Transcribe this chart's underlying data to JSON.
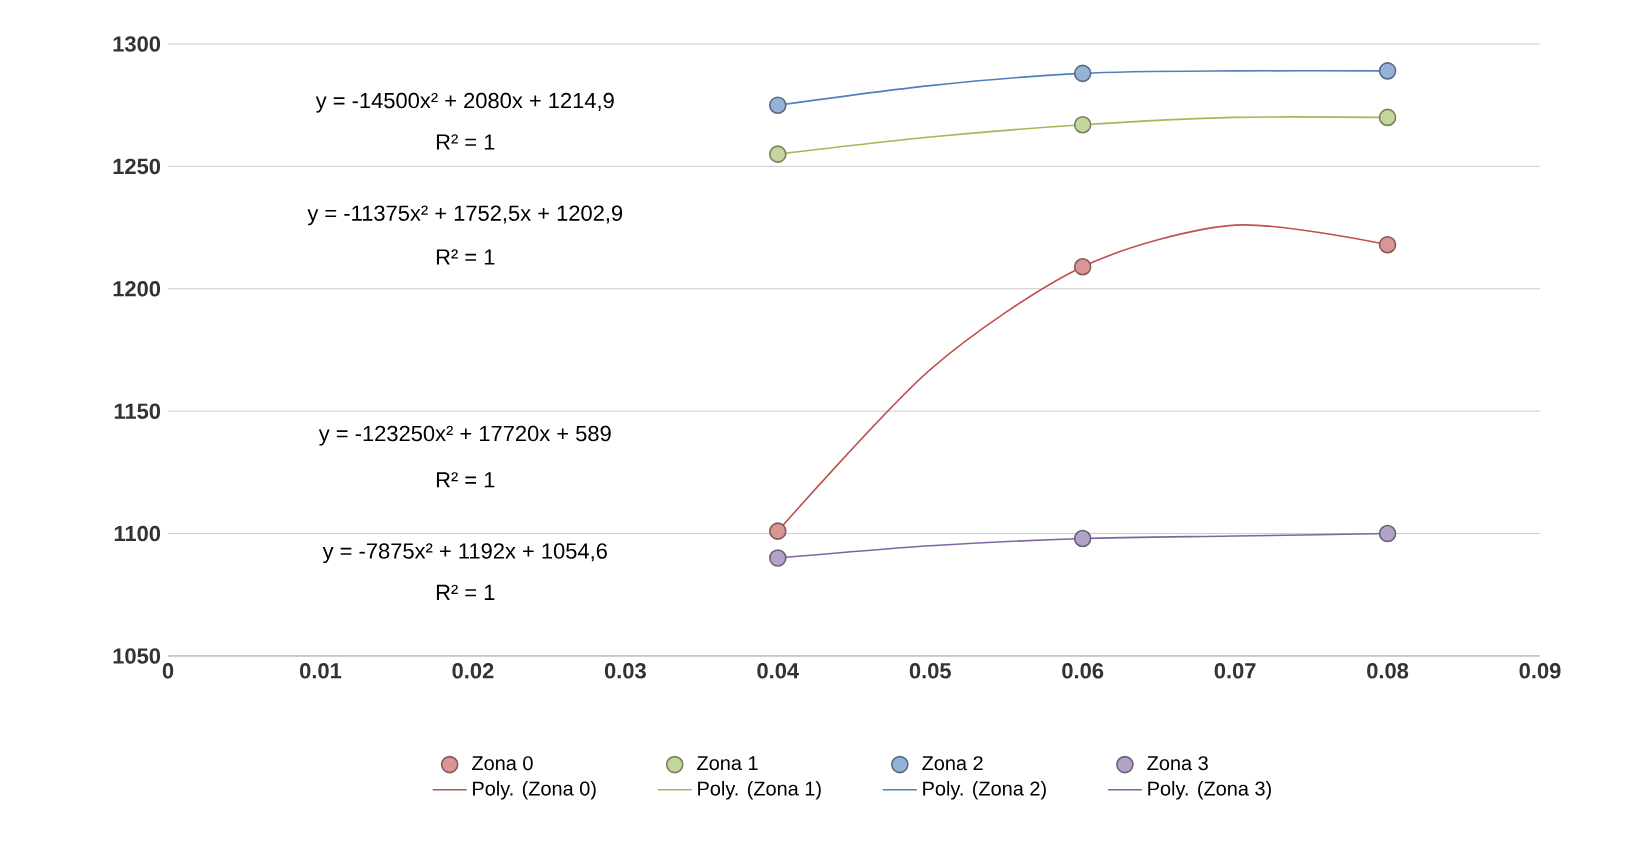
{
  "chart_data": {
    "type": "scatter",
    "series": [
      {
        "name": "Zona 0",
        "color": "#d99694",
        "marker": "circle",
        "x": [
          0.04,
          0.06,
          0.08
        ],
        "values": [
          1101,
          1209,
          1218
        ]
      },
      {
        "name": "Zona 1",
        "color": "#c3d69b",
        "marker": "circle",
        "x": [
          0.04,
          0.06,
          0.08
        ],
        "values": [
          1255,
          1267,
          1270
        ]
      },
      {
        "name": "Zona 2",
        "color": "#95b3d7",
        "marker": "circle",
        "x": [
          0.04,
          0.06,
          0.08
        ],
        "values": [
          1275,
          1288,
          1289
        ]
      },
      {
        "name": "Zona 3",
        "color": "#b3a2c7",
        "marker": "circle",
        "x": [
          0.04,
          0.06,
          0.08
        ],
        "values": [
          1090,
          1098,
          1100
        ]
      },
      {
        "name": "Poly. (Zona 0)",
        "type": "line",
        "marker": "none",
        "color": "#c0504d",
        "x": [
          0.04,
          0.05,
          0.06,
          0.07,
          0.08
        ],
        "values": [
          1101,
          1167,
          1209,
          1226,
          1218
        ]
      },
      {
        "name": "Poly. (Zona 1)",
        "type": "line",
        "marker": "none",
        "color": "#9bbb59",
        "x": [
          0.04,
          0.05,
          0.06,
          0.07,
          0.08
        ],
        "values": [
          1255,
          1262,
          1267,
          1270,
          1270
        ]
      },
      {
        "name": "Poly. (Zona 2)",
        "type": "line",
        "marker": "none",
        "color": "#4f81bd",
        "x": [
          0.04,
          0.05,
          0.06,
          0.07,
          0.08
        ],
        "values": [
          1275,
          1283,
          1288,
          1289,
          1289
        ]
      },
      {
        "name": "Poly. (Zona 3)",
        "type": "line",
        "marker": "none",
        "color": "#8064a2",
        "x": [
          0.04,
          0.05,
          0.06,
          0.07,
          0.08
        ],
        "values": [
          1090,
          1095,
          1098,
          1099,
          1100
        ]
      }
    ],
    "xlim": [
      0,
      0.09
    ],
    "xticks": [
      0,
      0.01,
      0.02,
      0.03,
      0.04,
      0.05,
      0.06,
      0.07,
      0.08,
      0.09
    ],
    "ylim": [
      1050,
      1300
    ],
    "yticks": [
      1050,
      1100,
      1150,
      1200,
      1250,
      1300
    ],
    "grid": "y",
    "legend": "bottom",
    "line_style": "solid",
    "annotations": [
      "y = -14500x² + 2080x + 1214,9",
      "R² = 1",
      "y = -11375x² + 1752,5x + 1202,9",
      "R² = 1",
      "y = -123250x² + 17720x + 589",
      "R² = 1",
      "y = -7875x² + 1192x + 1054,6",
      "R² = 1"
    ]
  }
}
